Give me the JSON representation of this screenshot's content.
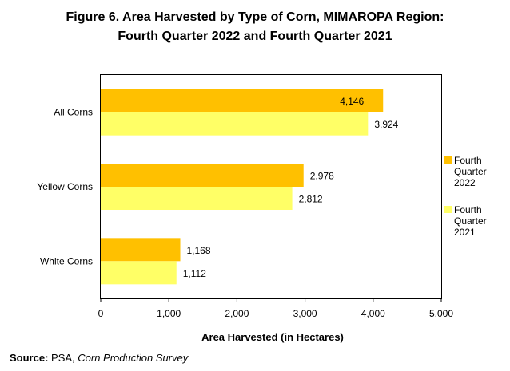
{
  "title_line1": "Figure 6. Area Harvested by Type of Corn, MIMAROPA Region:",
  "title_line2": "Fourth Quarter 2022 and Fourth Quarter 2021",
  "source_label": "Source:",
  "source_text": " PSA, ",
  "source_italic": "Corn Production Survey",
  "chart_data": {
    "type": "bar",
    "orientation": "horizontal",
    "categories": [
      "All Corns",
      "Yellow Corns",
      "White Corns"
    ],
    "series": [
      {
        "name": "Fourth Quarter 2022",
        "values": [
          4146,
          2978,
          1168
        ],
        "labels": [
          "4,146",
          "2,978",
          "1,168"
        ],
        "color": "#FFC000"
      },
      {
        "name": "Fourth Quarter 2021",
        "values": [
          3924,
          2812,
          1112
        ],
        "labels": [
          "3,924",
          "2,812",
          "1,112"
        ],
        "color": "#FFFF66"
      }
    ],
    "xlabel": "Area Harvested (in Hectares)",
    "xlim": [
      0,
      5000
    ],
    "xticks": [
      0,
      1000,
      2000,
      3000,
      4000,
      5000
    ],
    "xtick_labels": [
      "0",
      "1,000",
      "2,000",
      "3,000",
      "4,000",
      "5,000"
    ],
    "grid": false,
    "legend_position": "right"
  }
}
